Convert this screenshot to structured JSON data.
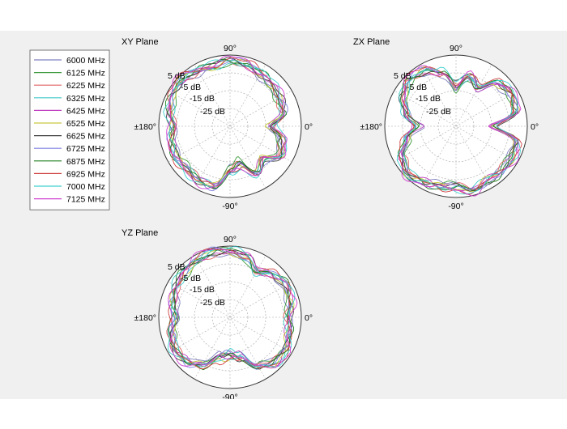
{
  "chart_data": [
    {
      "type": "polar-line",
      "title": "XY Plane",
      "angle_labels": [
        "90°",
        "0°",
        "-90°",
        "±180°"
      ],
      "radial_labels": [
        "5 dB",
        "-5 dB",
        "-15 dB",
        "-25 dB"
      ],
      "r_range_db": [
        -35,
        5
      ],
      "series_shape": {
        "angles_deg": [
          0,
          15,
          30,
          45,
          60,
          75,
          90,
          105,
          120,
          135,
          150,
          165,
          180,
          195,
          210,
          225,
          240,
          255,
          270,
          285,
          300,
          315,
          330,
          345
        ],
        "gain_db": [
          -12,
          -4,
          -3,
          -2,
          -1,
          1,
          2,
          0,
          1,
          3,
          2,
          0,
          -3,
          -1,
          0,
          -1,
          0,
          0,
          -10,
          -13,
          -5,
          -9,
          -2,
          -5
        ]
      }
    },
    {
      "type": "polar-line",
      "title": "ZX Plane",
      "angle_labels": [
        "90°",
        "0°",
        "-90°",
        "±180°"
      ],
      "radial_labels": [
        "5 dB",
        "-5 dB",
        "-15 dB",
        "-25 dB"
      ],
      "r_range_db": [
        -35,
        5
      ],
      "series_shape": {
        "angles_deg": [
          0,
          15,
          30,
          45,
          60,
          75,
          90,
          105,
          120,
          135,
          150,
          165,
          180,
          195,
          210,
          225,
          240,
          255,
          270,
          285,
          300,
          315,
          330,
          345
        ],
        "gain_db": [
          -14,
          0,
          1,
          -1,
          -10,
          -6,
          -13,
          -4,
          1,
          2,
          -1,
          -6,
          -13,
          -6,
          0,
          3,
          1,
          0,
          -1,
          2,
          0,
          1,
          1,
          0
        ]
      }
    },
    {
      "type": "polar-line",
      "title": "YZ Plane",
      "angle_labels": [
        "90°",
        "0°",
        "-90°",
        "±180°"
      ],
      "radial_labels": [
        "5 dB",
        "-5 dB",
        "-15 dB",
        "-25 dB"
      ],
      "r_range_db": [
        -35,
        5
      ],
      "series_shape": {
        "angles_deg": [
          0,
          15,
          30,
          45,
          60,
          75,
          90,
          105,
          120,
          135,
          150,
          165,
          180,
          195,
          210,
          225,
          240,
          255,
          270,
          285,
          300,
          315,
          330,
          345
        ],
        "gain_db": [
          -2,
          0,
          1,
          -1,
          -5,
          0,
          2,
          3,
          2,
          1,
          0,
          -2,
          -4,
          -1,
          1,
          0,
          -4,
          -12,
          -14,
          -12,
          -3,
          1,
          1,
          -1
        ]
      }
    }
  ],
  "legend": {
    "entries": [
      {
        "label": "6000 MHz",
        "color": "#8080c0"
      },
      {
        "label": "6125 MHz",
        "color": "#3c9a3c"
      },
      {
        "label": "6225 MHz",
        "color": "#e06060"
      },
      {
        "label": "6325 MHz",
        "color": "#40c8c8"
      },
      {
        "label": "6425 MHz",
        "color": "#c040c0"
      },
      {
        "label": "6525 MHz",
        "color": "#c8c840"
      },
      {
        "label": "6625 MHz",
        "color": "#404040"
      },
      {
        "label": "6725 MHz",
        "color": "#8080e0"
      },
      {
        "label": "6875 MHz",
        "color": "#208020"
      },
      {
        "label": "6925 MHz",
        "color": "#d04040"
      },
      {
        "label": "7000 MHz",
        "color": "#40d0d0"
      },
      {
        "label": "7125 MHz",
        "color": "#d040d0"
      }
    ]
  }
}
